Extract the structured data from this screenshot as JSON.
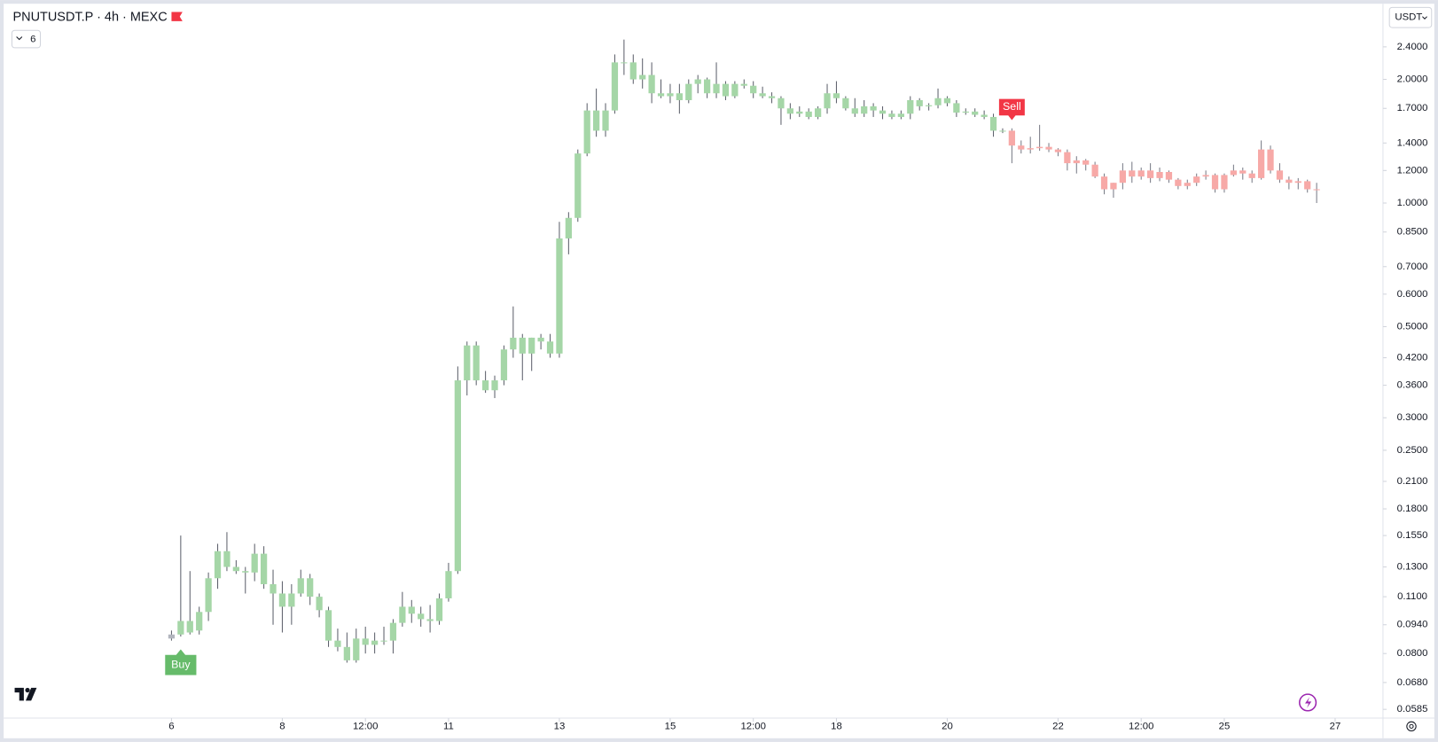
{
  "chart_data": {
    "type": "candlestick",
    "title": "PNUTUSDT.P · 4h · MEXC",
    "indicator_count": "6",
    "currency": "USDT",
    "log_scale": true,
    "ylim": [
      0.0557,
      3.12
    ],
    "yticks": [
      {
        "value": 2.4,
        "label": "2.4000"
      },
      {
        "value": 2.0,
        "label": "2.0000"
      },
      {
        "value": 1.7,
        "label": "1.7000"
      },
      {
        "value": 1.4,
        "label": "1.4000"
      },
      {
        "value": 1.2,
        "label": "1.2000"
      },
      {
        "value": 1.0,
        "label": "1.0000"
      },
      {
        "value": 0.85,
        "label": "0.8500"
      },
      {
        "value": 0.7,
        "label": "0.7000"
      },
      {
        "value": 0.6,
        "label": "0.6000"
      },
      {
        "value": 0.5,
        "label": "0.5000"
      },
      {
        "value": 0.42,
        "label": "0.4200"
      },
      {
        "value": 0.36,
        "label": "0.3600"
      },
      {
        "value": 0.3,
        "label": "0.3000"
      },
      {
        "value": 0.25,
        "label": "0.2500"
      },
      {
        "value": 0.21,
        "label": "0.2100"
      },
      {
        "value": 0.18,
        "label": "0.1800"
      },
      {
        "value": 0.155,
        "label": "0.1550"
      },
      {
        "value": 0.13,
        "label": "0.1300"
      },
      {
        "value": 0.11,
        "label": "0.1100"
      },
      {
        "value": 0.094,
        "label": "0.0940"
      },
      {
        "value": 0.08,
        "label": "0.0800"
      },
      {
        "value": 0.068,
        "label": "0.0680"
      },
      {
        "value": 0.0585,
        "label": "0.0585"
      }
    ],
    "xticks": [
      {
        "value": 0,
        "label": "6"
      },
      {
        "value": 12,
        "label": "8"
      },
      {
        "value": 21,
        "label": "12:00"
      },
      {
        "value": 30,
        "label": "11"
      },
      {
        "value": 42,
        "label": "13"
      },
      {
        "value": 54,
        "label": "15"
      },
      {
        "value": 63,
        "label": "12:00"
      },
      {
        "value": 72,
        "label": "18"
      },
      {
        "value": 84,
        "label": "20"
      },
      {
        "value": 96,
        "label": "22"
      },
      {
        "value": 105,
        "label": "12:00"
      },
      {
        "value": 114,
        "label": "25"
      },
      {
        "value": 126,
        "label": "27"
      }
    ],
    "colors": {
      "neutral": "#b2b5be",
      "buy": "#a5d6a7",
      "sell": "#f7a9a7"
    },
    "signals": [
      {
        "label": "Buy",
        "index": 1,
        "color": "#66bb6a"
      },
      {
        "label": "Sell",
        "index": 91,
        "color": "#f23645"
      }
    ],
    "candles": [
      [
        0.087,
        0.091,
        0.086,
        0.089
      ],
      [
        0.089,
        0.155,
        0.088,
        0.096
      ],
      [
        0.09,
        0.127,
        0.089,
        0.096
      ],
      [
        0.091,
        0.104,
        0.089,
        0.101
      ],
      [
        0.101,
        0.126,
        0.096,
        0.122
      ],
      [
        0.122,
        0.148,
        0.115,
        0.142
      ],
      [
        0.142,
        0.158,
        0.127,
        0.13
      ],
      [
        0.13,
        0.135,
        0.125,
        0.127
      ],
      [
        0.127,
        0.13,
        0.112,
        0.126
      ],
      [
        0.126,
        0.148,
        0.12,
        0.14
      ],
      [
        0.14,
        0.146,
        0.115,
        0.118
      ],
      [
        0.118,
        0.128,
        0.094,
        0.112
      ],
      [
        0.112,
        0.12,
        0.09,
        0.104
      ],
      [
        0.104,
        0.118,
        0.094,
        0.112
      ],
      [
        0.112,
        0.128,
        0.11,
        0.122
      ],
      [
        0.122,
        0.125,
        0.105,
        0.11
      ],
      [
        0.11,
        0.112,
        0.098,
        0.102
      ],
      [
        0.102,
        0.104,
        0.083,
        0.086
      ],
      [
        0.086,
        0.092,
        0.081,
        0.083
      ],
      [
        0.083,
        0.09,
        0.076,
        0.077
      ],
      [
        0.077,
        0.092,
        0.076,
        0.087
      ],
      [
        0.087,
        0.093,
        0.08,
        0.084
      ],
      [
        0.084,
        0.09,
        0.08,
        0.086
      ],
      [
        0.086,
        0.093,
        0.084,
        0.086
      ],
      [
        0.086,
        0.097,
        0.08,
        0.095
      ],
      [
        0.095,
        0.113,
        0.093,
        0.104
      ],
      [
        0.104,
        0.108,
        0.095,
        0.1
      ],
      [
        0.1,
        0.104,
        0.093,
        0.097
      ],
      [
        0.097,
        0.105,
        0.09,
        0.096
      ],
      [
        0.096,
        0.112,
        0.094,
        0.109
      ],
      [
        0.109,
        0.133,
        0.107,
        0.127
      ],
      [
        0.127,
        0.4,
        0.125,
        0.37
      ],
      [
        0.37,
        0.46,
        0.34,
        0.45
      ],
      [
        0.45,
        0.46,
        0.36,
        0.37
      ],
      [
        0.37,
        0.39,
        0.345,
        0.35
      ],
      [
        0.35,
        0.38,
        0.335,
        0.37
      ],
      [
        0.37,
        0.45,
        0.36,
        0.44
      ],
      [
        0.44,
        0.56,
        0.42,
        0.47
      ],
      [
        0.47,
        0.48,
        0.37,
        0.43
      ],
      [
        0.43,
        0.47,
        0.39,
        0.47
      ],
      [
        0.47,
        0.48,
        0.44,
        0.46
      ],
      [
        0.46,
        0.48,
        0.42,
        0.43
      ],
      [
        0.43,
        0.9,
        0.42,
        0.82
      ],
      [
        0.82,
        0.95,
        0.75,
        0.92
      ],
      [
        0.92,
        1.35,
        0.9,
        1.32
      ],
      [
        1.32,
        1.75,
        1.3,
        1.68
      ],
      [
        1.68,
        1.9,
        1.45,
        1.5
      ],
      [
        1.5,
        1.75,
        1.45,
        1.68
      ],
      [
        1.68,
        2.3,
        1.65,
        2.2
      ],
      [
        2.2,
        2.5,
        2.05,
        2.2
      ],
      [
        2.2,
        2.3,
        1.95,
        2.0
      ],
      [
        2.0,
        2.25,
        1.9,
        2.05
      ],
      [
        2.05,
        2.2,
        1.75,
        1.85
      ],
      [
        1.85,
        2.0,
        1.8,
        1.82
      ],
      [
        1.82,
        1.95,
        1.75,
        1.85
      ],
      [
        1.85,
        1.95,
        1.65,
        1.78
      ],
      [
        1.78,
        2.0,
        1.75,
        1.95
      ],
      [
        1.95,
        2.05,
        1.85,
        2.0
      ],
      [
        2.0,
        2.02,
        1.8,
        1.85
      ],
      [
        1.85,
        2.2,
        1.8,
        1.95
      ],
      [
        1.95,
        1.98,
        1.78,
        1.82
      ],
      [
        1.82,
        1.98,
        1.8,
        1.95
      ],
      [
        1.95,
        2.0,
        1.9,
        1.93
      ],
      [
        1.93,
        1.98,
        1.8,
        1.85
      ],
      [
        1.85,
        1.92,
        1.8,
        1.82
      ],
      [
        1.82,
        1.86,
        1.75,
        1.8
      ],
      [
        1.8,
        1.82,
        1.55,
        1.7
      ],
      [
        1.7,
        1.75,
        1.6,
        1.65
      ],
      [
        1.65,
        1.72,
        1.62,
        1.67
      ],
      [
        1.67,
        1.7,
        1.6,
        1.62
      ],
      [
        1.62,
        1.72,
        1.6,
        1.7
      ],
      [
        1.7,
        1.95,
        1.65,
        1.85
      ],
      [
        1.85,
        1.98,
        1.75,
        1.8
      ],
      [
        1.8,
        1.82,
        1.68,
        1.7
      ],
      [
        1.7,
        1.8,
        1.62,
        1.65
      ],
      [
        1.65,
        1.78,
        1.62,
        1.72
      ],
      [
        1.72,
        1.75,
        1.62,
        1.68
      ],
      [
        1.68,
        1.72,
        1.6,
        1.65
      ],
      [
        1.65,
        1.68,
        1.6,
        1.62
      ],
      [
        1.62,
        1.68,
        1.6,
        1.65
      ],
      [
        1.65,
        1.82,
        1.6,
        1.78
      ],
      [
        1.78,
        1.8,
        1.68,
        1.72
      ],
      [
        1.72,
        1.75,
        1.68,
        1.73
      ],
      [
        1.73,
        1.9,
        1.7,
        1.8
      ],
      [
        1.8,
        1.82,
        1.72,
        1.75
      ],
      [
        1.75,
        1.78,
        1.62,
        1.66
      ],
      [
        1.66,
        1.7,
        1.64,
        1.67
      ],
      [
        1.67,
        1.7,
        1.62,
        1.64
      ],
      [
        1.64,
        1.68,
        1.6,
        1.62
      ],
      [
        1.62,
        1.65,
        1.45,
        1.5
      ],
      [
        1.5,
        1.52,
        1.48,
        1.5
      ],
      [
        1.5,
        1.52,
        1.25,
        1.38
      ],
      [
        1.38,
        1.42,
        1.32,
        1.35
      ],
      [
        1.35,
        1.45,
        1.32,
        1.36
      ],
      [
        1.36,
        1.55,
        1.34,
        1.37
      ],
      [
        1.37,
        1.4,
        1.33,
        1.35
      ],
      [
        1.35,
        1.36,
        1.3,
        1.33
      ],
      [
        1.33,
        1.35,
        1.2,
        1.25
      ],
      [
        1.25,
        1.3,
        1.18,
        1.27
      ],
      [
        1.27,
        1.28,
        1.2,
        1.24
      ],
      [
        1.24,
        1.26,
        1.15,
        1.16
      ],
      [
        1.16,
        1.18,
        1.05,
        1.08
      ],
      [
        1.08,
        1.12,
        1.03,
        1.12
      ],
      [
        1.12,
        1.25,
        1.08,
        1.2
      ],
      [
        1.2,
        1.26,
        1.12,
        1.16
      ],
      [
        1.16,
        1.22,
        1.14,
        1.2
      ],
      [
        1.2,
        1.25,
        1.12,
        1.15
      ],
      [
        1.15,
        1.22,
        1.13,
        1.19
      ],
      [
        1.19,
        1.2,
        1.12,
        1.14
      ],
      [
        1.14,
        1.15,
        1.08,
        1.1
      ],
      [
        1.1,
        1.14,
        1.08,
        1.12
      ],
      [
        1.12,
        1.18,
        1.1,
        1.16
      ],
      [
        1.16,
        1.2,
        1.14,
        1.17
      ],
      [
        1.17,
        1.18,
        1.06,
        1.08
      ],
      [
        1.08,
        1.18,
        1.06,
        1.17
      ],
      [
        1.17,
        1.24,
        1.16,
        1.2
      ],
      [
        1.2,
        1.22,
        1.14,
        1.18
      ],
      [
        1.18,
        1.2,
        1.12,
        1.15
      ],
      [
        1.15,
        1.42,
        1.14,
        1.35
      ],
      [
        1.35,
        1.38,
        1.18,
        1.2
      ],
      [
        1.2,
        1.25,
        1.12,
        1.14
      ],
      [
        1.14,
        1.16,
        1.08,
        1.12
      ],
      [
        1.12,
        1.15,
        1.08,
        1.13
      ],
      [
        1.13,
        1.14,
        1.06,
        1.08
      ],
      [
        1.08,
        1.12,
        1.0,
        1.08
      ]
    ]
  }
}
